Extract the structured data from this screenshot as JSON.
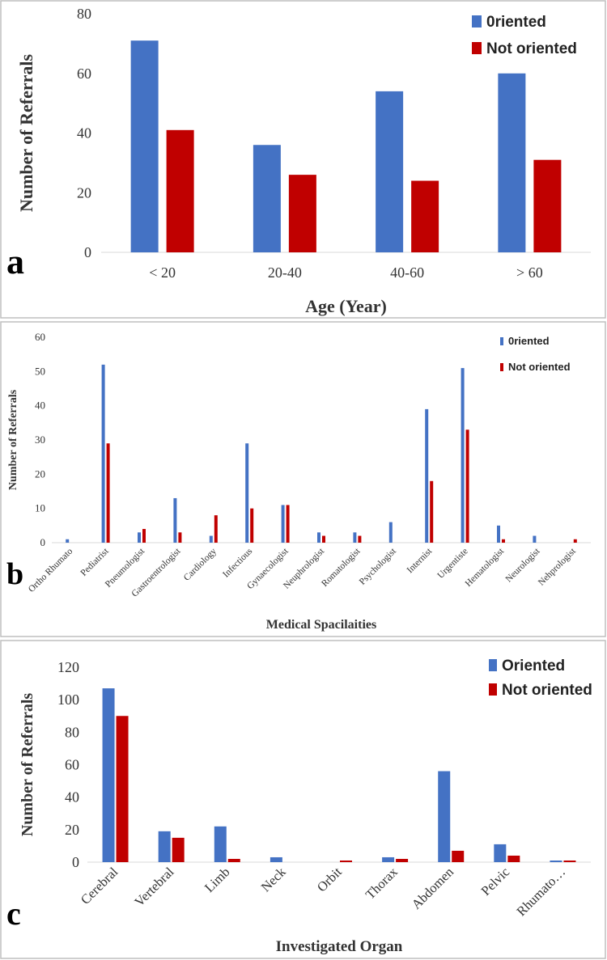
{
  "colors": {
    "oriented": "#4472C4",
    "not_oriented": "#C00000",
    "border": "#BFBFBF",
    "axis": "#D9D9D9"
  },
  "chart_data": [
    {
      "type": "bar",
      "panel_letter": "a",
      "categories": [
        "< 20",
        "20-40",
        "40-60",
        "> 60"
      ],
      "series": [
        {
          "name": "0riented",
          "values": [
            71,
            36,
            54,
            60
          ]
        },
        {
          "name": "Not oriented",
          "values": [
            41,
            26,
            24,
            31
          ]
        }
      ],
      "ylim": [
        0,
        80
      ],
      "yticks": [
        0,
        20,
        40,
        60,
        80
      ],
      "xlabel": "Age (Year)",
      "ylabel": "Number of Referrals",
      "grid": false,
      "legend": "top-right"
    },
    {
      "type": "bar",
      "panel_letter": "b",
      "categories": [
        "Ortho Rhumato",
        "Pediatrist",
        "Pneumologist",
        "Gastroentrologist",
        "Cardiology",
        "Infectious",
        "Gynaecologist",
        "Neuphrologist",
        "Romatologist",
        "Psychologist",
        "Internist",
        "Urgentiste",
        "Hematologist",
        "Neurologist",
        "Nehprologist"
      ],
      "series": [
        {
          "name": "0riented",
          "values": [
            1,
            52,
            3,
            13,
            2,
            29,
            11,
            3,
            3,
            6,
            39,
            51,
            5,
            2,
            0
          ]
        },
        {
          "name": "Not oriented",
          "values": [
            0,
            29,
            4,
            3,
            8,
            10,
            11,
            2,
            2,
            0,
            18,
            33,
            1,
            0,
            1
          ]
        }
      ],
      "ylim": [
        0,
        60
      ],
      "yticks": [
        0,
        10,
        20,
        30,
        40,
        50,
        60
      ],
      "xlabel": "Medical Spacilaities",
      "ylabel": "Number of Referrals",
      "grid": false,
      "legend": "top-right"
    },
    {
      "type": "bar",
      "panel_letter": "c",
      "categories": [
        "Cerebral",
        "Vertebral",
        "Limb",
        "Neck",
        "Orbit",
        "Thorax",
        "Abdomen",
        "Pelvic",
        "Rhumato…"
      ],
      "series": [
        {
          "name": "Oriented",
          "values": [
            107,
            19,
            22,
            3,
            0,
            3,
            56,
            11,
            1
          ]
        },
        {
          "name": "Not oriented",
          "values": [
            90,
            15,
            2,
            0,
            1,
            2,
            7,
            4,
            1
          ]
        }
      ],
      "ylim": [
        0,
        120
      ],
      "yticks": [
        0,
        20,
        40,
        60,
        80,
        100,
        120
      ],
      "xlabel": "Investigated Organ",
      "ylabel": "Number of Referrals",
      "grid": false,
      "legend": "top-right"
    }
  ]
}
